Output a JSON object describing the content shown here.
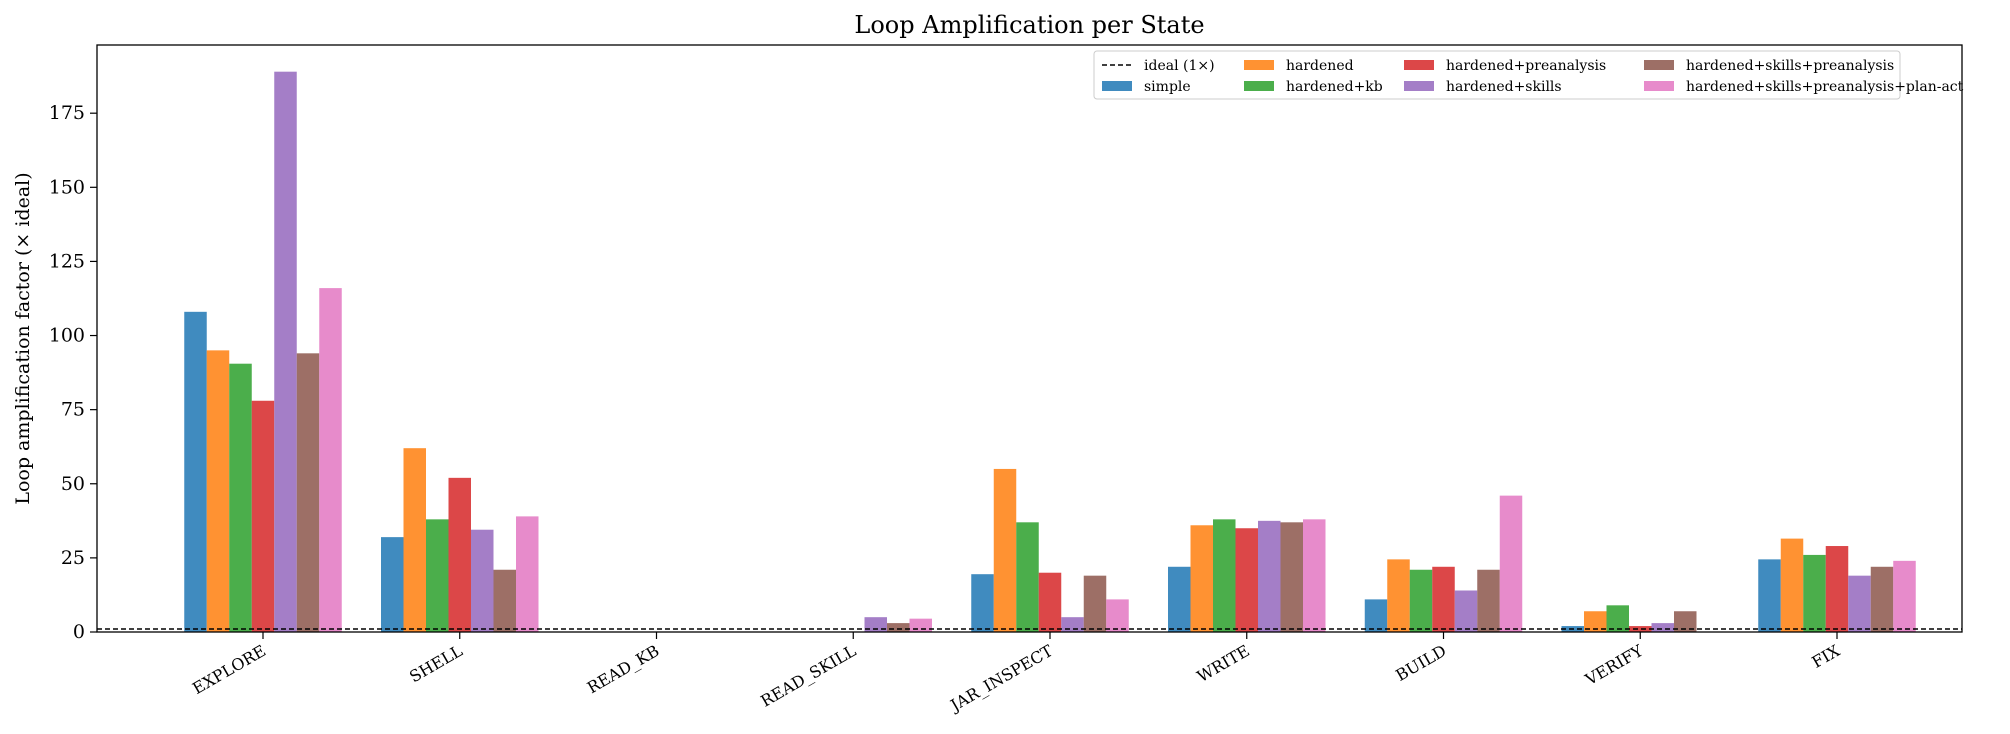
{
  "chart_data": {
    "type": "bar",
    "title": "Loop Amplification per State",
    "xlabel": "",
    "ylabel": "Loop amplification factor (× ideal)",
    "ylim": [
      0,
      198
    ],
    "yticks": [
      0,
      25,
      50,
      75,
      100,
      125,
      150,
      175
    ],
    "categories": [
      "EXPLORE",
      "SHELL",
      "READ_KB",
      "READ_SKILL",
      "JAR_INSPECT",
      "WRITE",
      "BUILD",
      "VERIFY",
      "FIX"
    ],
    "reference_line": {
      "label": "ideal (1×)",
      "value": 1,
      "style": "dashed",
      "color": "#000000"
    },
    "legend_position": "upper-right",
    "grid": false,
    "series": [
      {
        "name": "simple",
        "color": "#1f77b4",
        "values": [
          108,
          32,
          0,
          0,
          19.5,
          22,
          11,
          2,
          24.5
        ]
      },
      {
        "name": "hardened",
        "color": "#ff7f0e",
        "values": [
          95,
          62,
          0,
          0,
          55,
          36,
          24.5,
          7,
          31.5
        ]
      },
      {
        "name": "hardened+kb",
        "color": "#2ca02c",
        "values": [
          90.5,
          38,
          0,
          0,
          37,
          38,
          21,
          9,
          26
        ]
      },
      {
        "name": "hardened+preanalysis",
        "color": "#d62728",
        "values": [
          78,
          52,
          0,
          0,
          20,
          35,
          22,
          2,
          29
        ]
      },
      {
        "name": "hardened+skills",
        "color": "#9467bd",
        "values": [
          189,
          34.5,
          0,
          5,
          5,
          37.5,
          14,
          3,
          19
        ]
      },
      {
        "name": "hardened+skills+preanalysis",
        "color": "#8c564b",
        "values": [
          94,
          21,
          0,
          3,
          19,
          37,
          21,
          7,
          22
        ]
      },
      {
        "name": "hardened+skills+preanalysis+plan-act",
        "color": "#e377c2",
        "values": [
          116,
          39,
          0,
          4.5,
          11,
          38,
          46,
          0,
          24
        ]
      }
    ]
  }
}
